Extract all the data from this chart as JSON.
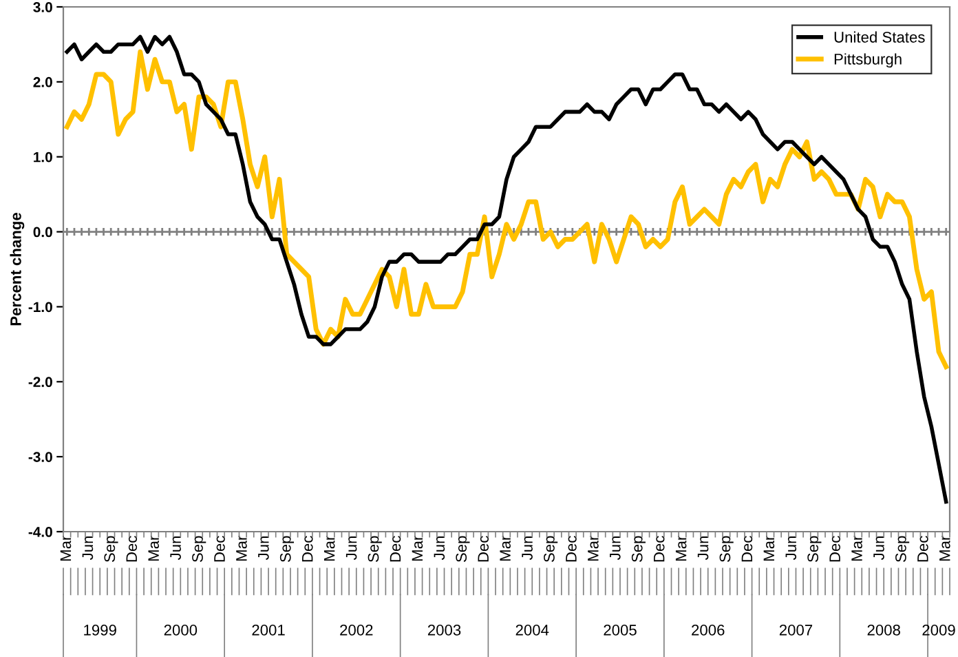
{
  "chart_data": {
    "type": "line",
    "ylabel": "Percent change",
    "categories": [
      "Mar",
      null,
      null,
      "Jun",
      null,
      null,
      "Sep",
      null,
      null,
      "Dec",
      null,
      null,
      "Mar",
      null,
      null,
      "Jun",
      null,
      null,
      "Sep",
      null,
      null,
      "Dec",
      null,
      null,
      "Mar",
      null,
      null,
      "Jun",
      null,
      null,
      "Sep",
      null,
      null,
      "Dec",
      null,
      null,
      "Mar",
      null,
      null,
      "Jun",
      null,
      null,
      "Sep",
      null,
      null,
      "Dec",
      null,
      null,
      "Mar",
      null,
      null,
      "Jun",
      null,
      null,
      "Sep",
      null,
      null,
      "Dec",
      null,
      null,
      "Mar",
      null,
      null,
      "Jun",
      null,
      null,
      "Sep",
      null,
      null,
      "Dec",
      null,
      null,
      "Mar",
      null,
      null,
      "Jun",
      null,
      null,
      "Sep",
      null,
      null,
      "Dec",
      null,
      null,
      "Mar",
      null,
      null,
      "Jun",
      null,
      null,
      "Sep",
      null,
      null,
      "Dec",
      null,
      null,
      "Mar",
      null,
      null,
      "Jun",
      null,
      null,
      "Sep",
      null,
      null,
      "Dec",
      null,
      null,
      "Mar",
      null,
      null,
      "Jun",
      null,
      null,
      "Sep",
      null,
      null,
      "Dec",
      null,
      null,
      "Mar"
    ],
    "series": [
      {
        "name": "United States",
        "color": "#000000",
        "values": [
          2.4,
          2.5,
          2.3,
          2.4,
          2.5,
          2.4,
          2.4,
          2.5,
          2.5,
          2.5,
          2.6,
          2.4,
          2.6,
          2.5,
          2.6,
          2.4,
          2.1,
          2.1,
          2.0,
          1.7,
          1.6,
          1.5,
          1.3,
          1.3,
          0.9,
          0.4,
          0.2,
          0.1,
          -0.1,
          -0.1,
          -0.4,
          -0.7,
          -1.1,
          -1.4,
          -1.4,
          -1.5,
          -1.5,
          -1.4,
          -1.3,
          -1.3,
          -1.3,
          -1.2,
          -1.0,
          -0.6,
          -0.4,
          -0.4,
          -0.3,
          -0.3,
          -0.4,
          -0.4,
          -0.4,
          -0.4,
          -0.3,
          -0.3,
          -0.2,
          -0.1,
          -0.1,
          0.1,
          0.1,
          0.2,
          0.7,
          1.0,
          1.1,
          1.2,
          1.4,
          1.4,
          1.4,
          1.5,
          1.6,
          1.6,
          1.6,
          1.7,
          1.6,
          1.6,
          1.5,
          1.7,
          1.8,
          1.9,
          1.9,
          1.7,
          1.9,
          1.9,
          2.0,
          2.1,
          2.1,
          1.9,
          1.9,
          1.7,
          1.7,
          1.6,
          1.7,
          1.6,
          1.5,
          1.6,
          1.5,
          1.3,
          1.2,
          1.1,
          1.2,
          1.2,
          1.1,
          1.0,
          0.9,
          1.0,
          0.9,
          0.8,
          0.7,
          0.5,
          0.3,
          0.2,
          -0.1,
          -0.2,
          -0.2,
          -0.4,
          -0.7,
          -0.9,
          -1.6,
          -2.2,
          -2.6,
          -3.1,
          -3.6
        ]
      },
      {
        "name": "Pittsburgh",
        "color": "#ffc000",
        "values": [
          1.4,
          1.6,
          1.5,
          1.7,
          2.1,
          2.1,
          2.0,
          1.3,
          1.5,
          1.6,
          2.4,
          1.9,
          2.3,
          2.0,
          2.0,
          1.6,
          1.7,
          1.1,
          1.8,
          1.8,
          1.7,
          1.4,
          2.0,
          2.0,
          1.5,
          0.9,
          0.6,
          1.0,
          0.2,
          0.7,
          -0.3,
          -0.4,
          -0.5,
          -0.6,
          -1.3,
          -1.5,
          -1.3,
          -1.4,
          -0.9,
          -1.1,
          -1.1,
          -0.9,
          -0.7,
          -0.5,
          -0.6,
          -1.0,
          -0.5,
          -1.1,
          -1.1,
          -0.7,
          -1.0,
          -1.0,
          -1.0,
          -1.0,
          -0.8,
          -0.3,
          -0.3,
          0.2,
          -0.6,
          -0.3,
          0.1,
          -0.1,
          0.1,
          0.4,
          0.4,
          -0.1,
          0.0,
          -0.2,
          -0.1,
          -0.1,
          0.0,
          0.1,
          -0.4,
          0.1,
          -0.1,
          -0.4,
          -0.1,
          0.2,
          0.1,
          -0.2,
          -0.1,
          -0.2,
          -0.1,
          0.4,
          0.6,
          0.1,
          0.2,
          0.3,
          0.2,
          0.1,
          0.5,
          0.7,
          0.6,
          0.8,
          0.9,
          0.4,
          0.7,
          0.6,
          0.9,
          1.1,
          1.0,
          1.2,
          0.7,
          0.8,
          0.7,
          0.5,
          0.5,
          0.5,
          0.3,
          0.7,
          0.6,
          0.2,
          0.5,
          0.4,
          0.4,
          0.2,
          -0.5,
          -0.9,
          -0.8,
          -1.6,
          -1.8
        ]
      }
    ],
    "ylim": [
      -4.0,
      3.0
    ],
    "yticks": [
      {
        "value": -4,
        "label": "-4.0"
      },
      {
        "value": -3,
        "label": "-3.0"
      },
      {
        "value": -2,
        "label": "-2.0"
      },
      {
        "value": -1,
        "label": "-1.0"
      },
      {
        "value": 0,
        "label": "0.0"
      },
      {
        "value": 1,
        "label": "1.0"
      },
      {
        "value": 2,
        "label": "2.0"
      },
      {
        "value": 3,
        "label": "3.0"
      }
    ],
    "ref_lines": [
      {
        "axis": "y",
        "value": 0,
        "color": "#808080"
      }
    ],
    "annotations": [
      "1999",
      "2000",
      "2001",
      "2002",
      "2003",
      "2004",
      "2005",
      "2006",
      "2007",
      "2008",
      "2009"
    ],
    "legend": "top right",
    "grid": false,
    "marker": "none",
    "line_style": "solid"
  }
}
